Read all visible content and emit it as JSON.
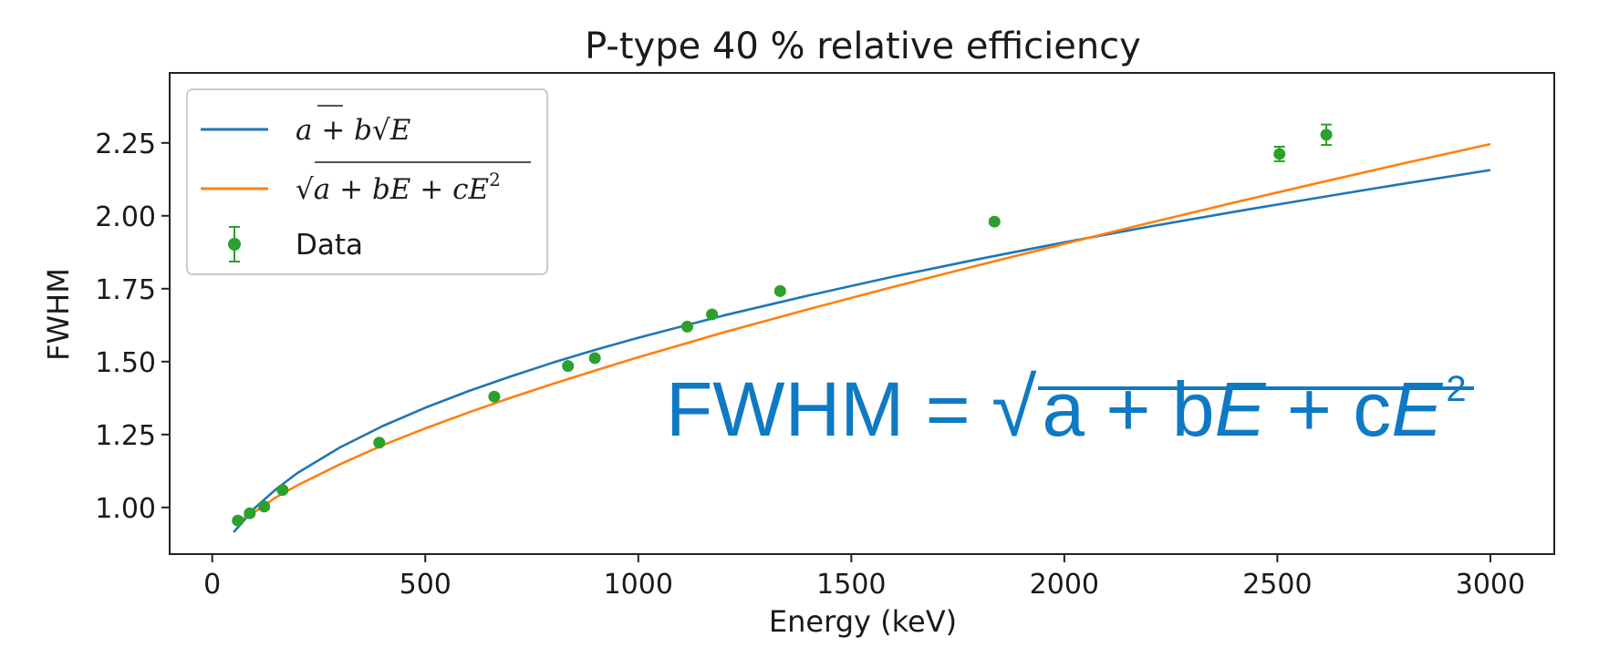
{
  "chart_data": {
    "type": "line",
    "title": "P-type 40 % relative efficiency",
    "xlabel": "Energy (keV)",
    "ylabel": "FWHM",
    "xlim": [
      -100,
      3150
    ],
    "ylim": [
      0.84,
      2.49
    ],
    "x_ticks": [
      0,
      500,
      1000,
      1500,
      2000,
      2500,
      3000
    ],
    "x_tick_labels": [
      "0",
      "500",
      "1000",
      "1500",
      "2000",
      "2500",
      "3000"
    ],
    "y_ticks": [
      1.0,
      1.25,
      1.5,
      1.75,
      2.0,
      2.25
    ],
    "y_tick_labels": [
      "1.00",
      "1.25",
      "1.50",
      "1.75",
      "2.00",
      "2.25"
    ],
    "legend_position": "top-left",
    "series": [
      {
        "name": "a + b√E",
        "kind": "line",
        "color": "#1f77b4",
        "x": [
          50,
          100,
          150,
          200,
          300,
          400,
          500,
          600,
          700,
          800,
          900,
          1000,
          1200,
          1400,
          1600,
          1800,
          2000,
          2200,
          2400,
          2600,
          2800,
          3000
        ],
        "y": [
          0.915,
          0.998,
          1.063,
          1.118,
          1.206,
          1.279,
          1.342,
          1.398,
          1.449,
          1.497,
          1.541,
          1.582,
          1.658,
          1.727,
          1.792,
          1.852,
          1.909,
          1.963,
          2.014,
          2.063,
          2.111,
          2.157
        ]
      },
      {
        "name": "√(a + bE + cE²)",
        "kind": "line",
        "color": "#ff7f0e",
        "x": [
          50,
          100,
          150,
          200,
          300,
          400,
          500,
          600,
          700,
          800,
          900,
          1000,
          1200,
          1400,
          1600,
          1800,
          2000,
          2200,
          2400,
          2600,
          2800,
          3000
        ],
        "y": [
          0.946,
          0.985,
          1.035,
          1.076,
          1.148,
          1.213,
          1.271,
          1.325,
          1.376,
          1.424,
          1.47,
          1.515,
          1.6,
          1.68,
          1.757,
          1.831,
          1.904,
          1.976,
          2.046,
          2.114,
          2.181,
          2.246
        ]
      },
      {
        "name": "Data",
        "kind": "errorbar",
        "color": "#2ca02c",
        "x": [
          60,
          88,
          122,
          165,
          392,
          662,
          835,
          898,
          1115,
          1173,
          1333,
          1836,
          2505,
          2615
        ],
        "y": [
          0.955,
          0.98,
          1.003,
          1.06,
          1.222,
          1.38,
          1.485,
          1.512,
          1.62,
          1.662,
          1.742,
          1.98,
          2.212,
          2.278
        ],
        "yerr": [
          0.006,
          0.006,
          0.006,
          0.006,
          0.006,
          0.006,
          0.006,
          0.006,
          0.006,
          0.006,
          0.006,
          0.006,
          0.025,
          0.035
        ]
      }
    ],
    "legend": [
      {
        "label_parts": [
          "a",
          " + ",
          "b",
          "√",
          "E"
        ],
        "series": 0
      },
      {
        "label_parts": [
          "√",
          "a",
          " + ",
          "b",
          "E",
          " + ",
          "c",
          "E",
          "2"
        ],
        "series": 1
      },
      {
        "label": "Data",
        "series": 2
      }
    ],
    "annotation": {
      "text_parts": [
        "FWHM = ",
        "√",
        "a + b",
        "E",
        " + c",
        "E",
        "2"
      ],
      "color": "#0f7ac4"
    }
  }
}
